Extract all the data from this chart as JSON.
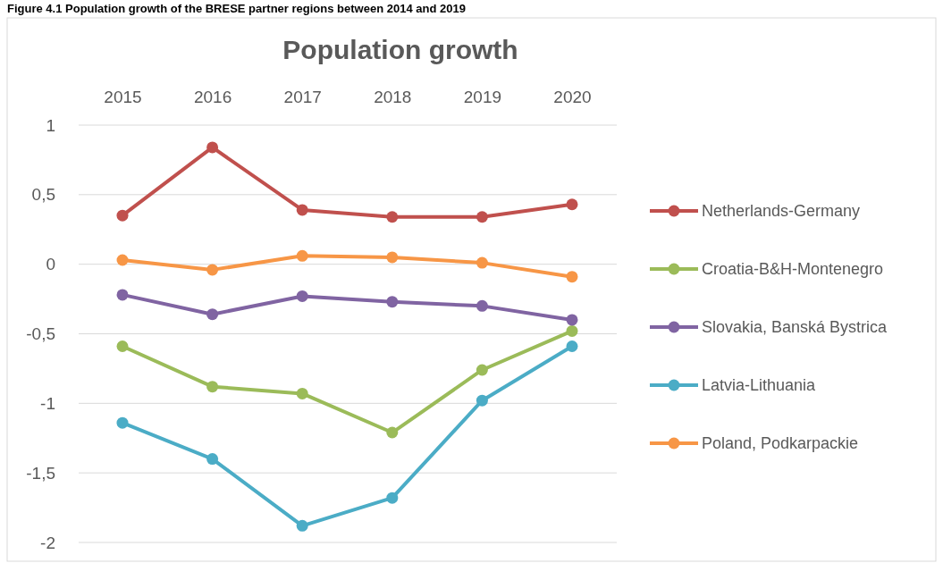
{
  "chart_data": {
    "type": "line",
    "title": "Population growth",
    "annotations": [
      "Figure 4.1  Population growth of the BRESE partner regions between 2014 and 2019"
    ],
    "categories": [
      "2015",
      "2016",
      "2017",
      "2018",
      "2019",
      "2020"
    ],
    "ylim": [
      -2,
      1
    ],
    "yticks": [
      {
        "value": -2,
        "label": "-2"
      },
      {
        "value": -1.5,
        "label": "-1,5"
      },
      {
        "value": -1,
        "label": "-1"
      },
      {
        "value": -0.5,
        "label": "-0,5"
      },
      {
        "value": 0,
        "label": "0"
      },
      {
        "value": 0.5,
        "label": "0,5"
      },
      {
        "value": 1,
        "label": "1"
      }
    ],
    "grid": "y",
    "legend": "right",
    "marker": "circle",
    "line_style": "solid",
    "series": [
      {
        "name": "Netherlands-Germany",
        "color": "#c0504d",
        "values": [
          0.35,
          0.84,
          0.39,
          0.34,
          0.34,
          0.43
        ]
      },
      {
        "name": "Croatia-B&H-Montenegro",
        "color": "#9bbb59",
        "values": [
          -0.59,
          -0.88,
          -0.93,
          -1.21,
          -0.76,
          -0.48
        ]
      },
      {
        "name": "Slovakia, Banská Bystrica",
        "color": "#8064a2",
        "values": [
          -0.22,
          -0.36,
          -0.23,
          -0.27,
          -0.3,
          -0.4
        ]
      },
      {
        "name": "Latvia-Lithuania",
        "color": "#4bacc6",
        "values": [
          -1.14,
          -1.4,
          -1.88,
          -1.68,
          -0.98,
          -0.59
        ]
      },
      {
        "name": "Poland, Podkarpackie",
        "color": "#f79646",
        "values": [
          0.03,
          -0.04,
          0.06,
          0.05,
          0.01,
          -0.09
        ]
      }
    ]
  }
}
